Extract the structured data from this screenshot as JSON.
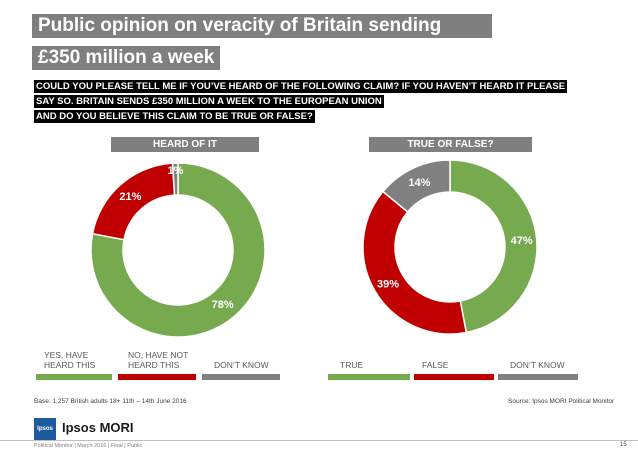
{
  "title": {
    "line1": "Public opinion on veracity of Britain sending",
    "line2": "£350 million a week"
  },
  "question": {
    "line1": "COULD YOU PLEASE TELL ME IF YOU’VE HEARD OF THE FOLLOWING CLAIM? IF YOU HAVEN’T HEARD IT PLEASE",
    "line2": "SAY SO. BRITAIN SENDS £350 MILLION A WEEK TO THE EUROPEAN UNION",
    "line3": "AND DO YOU BELIEVE THIS CLAIM TO BE TRUE OR FALSE?"
  },
  "chart_data": [
    {
      "type": "pie",
      "title": "HEARD OF IT",
      "slices": [
        {
          "label": "YES, HAVE HEARD THIS",
          "value": 78,
          "display": "78%",
          "color": "#77a94e"
        },
        {
          "label": "NO, HAVE NOT HEARD THIS",
          "value": 21,
          "display": "21%",
          "color": "#c00000"
        },
        {
          "label": "DON’T KNOW",
          "value": 1,
          "display": "1%",
          "color": "#808080"
        }
      ],
      "legend_placement": "bottom"
    },
    {
      "type": "pie",
      "title": "TRUE OR FALSE?",
      "slices": [
        {
          "label": "TRUE",
          "value": 47,
          "display": "47%",
          "color": "#77a94e"
        },
        {
          "label": "FALSE",
          "value": 39,
          "display": "39%",
          "color": "#c00000"
        },
        {
          "label": "DON’T KNOW",
          "value": 14,
          "display": "14%",
          "color": "#808080"
        }
      ],
      "legend_placement": "bottom"
    }
  ],
  "legend": {
    "chart1": [
      "YES, HAVE\nHEARD THIS",
      "NO, HAVE NOT\nHEARD THIS",
      "DON’T KNOW"
    ],
    "chart2": [
      "TRUE",
      "FALSE",
      "DON’T KNOW"
    ]
  },
  "footer": {
    "base": "Base: 1,257 British  adults 18+ 11th – 14th June 2016",
    "source": "Source: Ipsos MORI Political Monitor",
    "logo_badge": "Ipsos",
    "logo_text": "Ipsos MORI",
    "bottom_left": "Political Monitor | March 2016 | Final | Public",
    "page_number": "15"
  }
}
